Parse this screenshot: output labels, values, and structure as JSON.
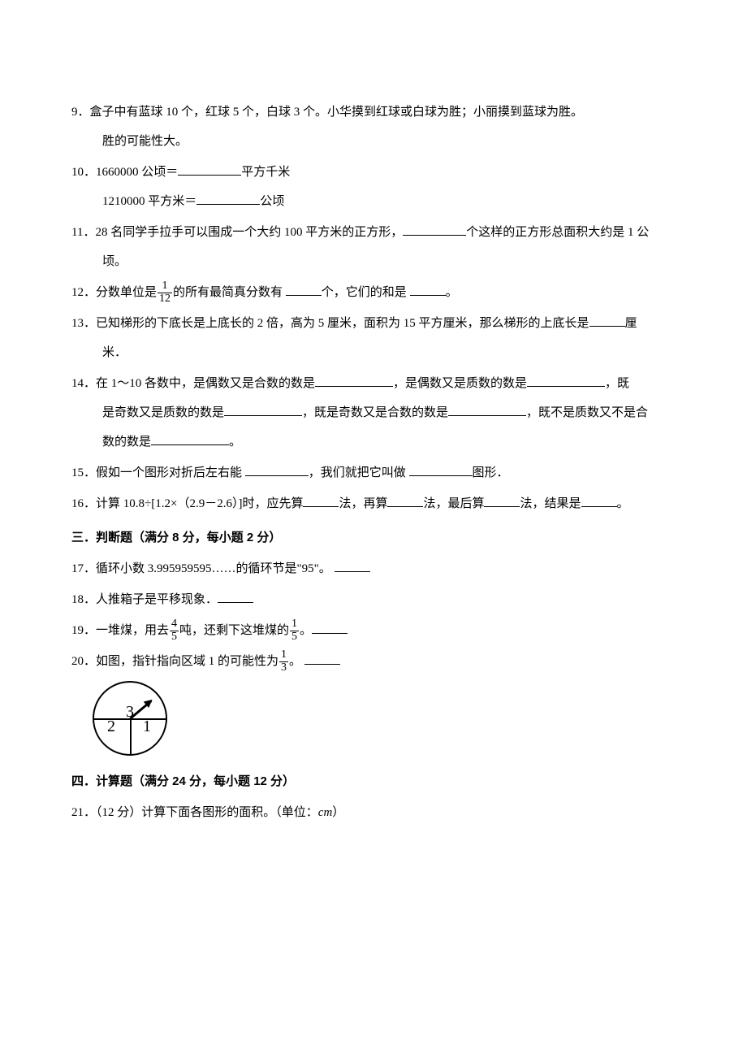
{
  "q9": {
    "num": "9．",
    "line1": "盒子中有蓝球 10 个，红球 5 个，白球 3 个。小华摸到红球或白球为胜；小丽摸到蓝球为胜。",
    "line2": "胜的可能性大。"
  },
  "q10": {
    "num": "10．",
    "part1a": "1660000 公顷＝",
    "part1b": "平方千米",
    "part2a": "1210000 平方米＝",
    "part2b": "公顷"
  },
  "q11": {
    "num": "11．",
    "a": "28 名同学手拉手可以围成一个大约 100 平方米的正方形，",
    "b": "个这样的正方形总面积大约是 1 公",
    "c": "顷。"
  },
  "q12": {
    "num": "12．",
    "a": "分数单位是",
    "frac_num": "1",
    "frac_den": "12",
    "b": "的所有最简真分数有 ",
    "c": "个，它们的和是 ",
    "d": "。"
  },
  "q13": {
    "num": "13．",
    "a": "已知梯形的下底长是上底长的 2 倍，高为 5 厘米，面积为 15 平方厘米，那么梯形的上底长是",
    "b": "厘",
    "c": "米．"
  },
  "q14": {
    "num": "14．",
    "a": "在 1～10 各数中，是偶数又是合数的数是",
    "b": "，是偶数又是质数的数是",
    "c": "，既",
    "d": "是奇数又是质数的数是",
    "e": "，既是奇数又是合数的数是",
    "f": "，既不是质数又不是合",
    "g": "数的数是",
    "h": "。"
  },
  "q15": {
    "num": "15．",
    "a": "假如一个图形对折后左右能 ",
    "b": "，我们就把它叫做 ",
    "c": "图形．"
  },
  "q16": {
    "num": "16．",
    "a": "计算 10.8÷[1.2×（2.9－2.6）]时，应先算",
    "b": "法，再算",
    "c": "法，最后算",
    "d": "法，结果是",
    "e": "。"
  },
  "section3": "三．判断题（满分 8 分，每小题 2 分）",
  "q17": {
    "num": "17．",
    "a": "循环小数 3.995959595……的循环节是\"95\"。 "
  },
  "q18": {
    "num": "18．",
    "a": "人推箱子是平移现象．"
  },
  "q19": {
    "num": "19．",
    "a": "一堆煤，用去",
    "f1n": "4",
    "f1d": "5",
    "b": "吨，还剩下这堆煤的",
    "f2n": "1",
    "f2d": "5",
    "c": "。"
  },
  "q20": {
    "num": "20．",
    "a": "如图，指针指向区域 1 的可能性为",
    "fn": "1",
    "fd": "3",
    "b": "。 ",
    "spinner": {
      "n1": "1",
      "n2": "2",
      "n3": "3"
    }
  },
  "section4": "四．计算题（满分 24 分，每小题 12 分）",
  "q21": {
    "num": "21．",
    "a": "（12 分）计算下面各图形的面积。（单位：",
    "unit": "cm",
    "b": "）"
  },
  "colors": {
    "text": "#000000",
    "background": "#ffffff"
  }
}
